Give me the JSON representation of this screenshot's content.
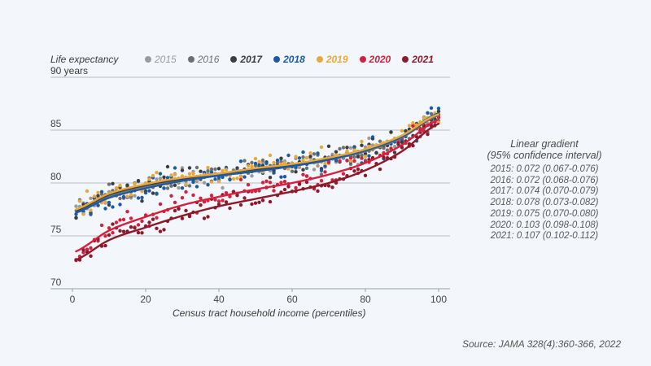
{
  "chart_data": {
    "type": "scatter",
    "title": "",
    "ylabel": "Life expectancy",
    "ylabel_unit": "90 years",
    "xlabel": "Census tract household income (percentiles)",
    "xlim": [
      0,
      100
    ],
    "ylim": [
      70,
      90
    ],
    "x_ticks": [
      0,
      20,
      40,
      60,
      80,
      100
    ],
    "y_ticks": [
      70,
      75,
      80,
      85,
      90
    ],
    "y_tick_labels": [
      "70",
      "75",
      "80",
      "85",
      ""
    ],
    "grid": true,
    "legend_position": "top",
    "series": [
      {
        "name": "2015",
        "color": "#9b9b9b",
        "trend_x": [
          0,
          10,
          20,
          30,
          40,
          50,
          60,
          70,
          80,
          90,
          100
        ],
        "trend_y": [
          77.2,
          78.8,
          79.7,
          80.3,
          80.8,
          81.2,
          81.6,
          82.2,
          83.0,
          84.3,
          86.4
        ],
        "scatter_spread": 0.9
      },
      {
        "name": "2016",
        "color": "#6e6f72",
        "trend_x": [
          0,
          10,
          20,
          30,
          40,
          50,
          60,
          70,
          80,
          90,
          100
        ],
        "trend_y": [
          77.2,
          78.8,
          79.7,
          80.3,
          80.8,
          81.2,
          81.6,
          82.2,
          83.0,
          84.3,
          86.4
        ],
        "scatter_spread": 0.9
      },
      {
        "name": "2017",
        "color": "#3b3d42",
        "trend_x": [
          0,
          10,
          20,
          30,
          40,
          50,
          60,
          70,
          80,
          90,
          100
        ],
        "trend_y": [
          77.3,
          78.9,
          79.8,
          80.4,
          80.9,
          81.3,
          81.7,
          82.3,
          83.1,
          84.4,
          86.5
        ],
        "scatter_spread": 1.0
      },
      {
        "name": "2018",
        "color": "#1c5aa6",
        "trend_x": [
          0,
          10,
          20,
          30,
          40,
          50,
          60,
          70,
          80,
          90,
          100
        ],
        "trend_y": [
          77.1,
          78.6,
          79.5,
          80.2,
          80.7,
          81.1,
          81.6,
          82.2,
          83.1,
          84.4,
          86.6
        ],
        "scatter_spread": 1.0
      },
      {
        "name": "2019",
        "color": "#e8a93c",
        "trend_x": [
          0,
          10,
          20,
          30,
          40,
          50,
          60,
          70,
          80,
          90,
          100
        ],
        "trend_y": [
          77.4,
          79.0,
          79.9,
          80.5,
          80.9,
          81.4,
          81.8,
          82.4,
          83.2,
          84.5,
          86.5
        ],
        "scatter_spread": 0.9
      },
      {
        "name": "2020",
        "color": "#d4213d",
        "trend_x": [
          0,
          10,
          20,
          30,
          40,
          50,
          60,
          70,
          80,
          90,
          100
        ],
        "trend_y": [
          73.4,
          75.5,
          76.8,
          77.9,
          78.7,
          79.4,
          80.0,
          80.8,
          81.9,
          83.6,
          86.0
        ],
        "scatter_spread": 1.0
      },
      {
        "name": "2021",
        "color": "#8b1a2b",
        "trend_x": [
          0,
          10,
          20,
          30,
          40,
          50,
          60,
          70,
          80,
          90,
          100
        ],
        "trend_y": [
          72.6,
          74.6,
          75.8,
          76.9,
          77.8,
          78.5,
          79.2,
          80.0,
          81.2,
          83.0,
          85.6
        ],
        "scatter_spread": 1.0
      }
    ],
    "annotations": {
      "gradient_title_line1": "Linear gradient",
      "gradient_title_line2": "(95% confidence interval)",
      "gradient_rows": [
        "2015: 0.072 (0.067-0.076)",
        "2016: 0.072 (0.068-0.076)",
        "2017: 0.074 (0.070-0.079)",
        "2018: 0.078 (0.073-0.082)",
        "2019: 0.075 (0.070-0.080)",
        "2020: 0.103 (0.098-0.108)",
        "2021: 0.107 (0.102-0.112)"
      ],
      "source": "Source: JAMA 328(4):360-366, 2022"
    }
  }
}
